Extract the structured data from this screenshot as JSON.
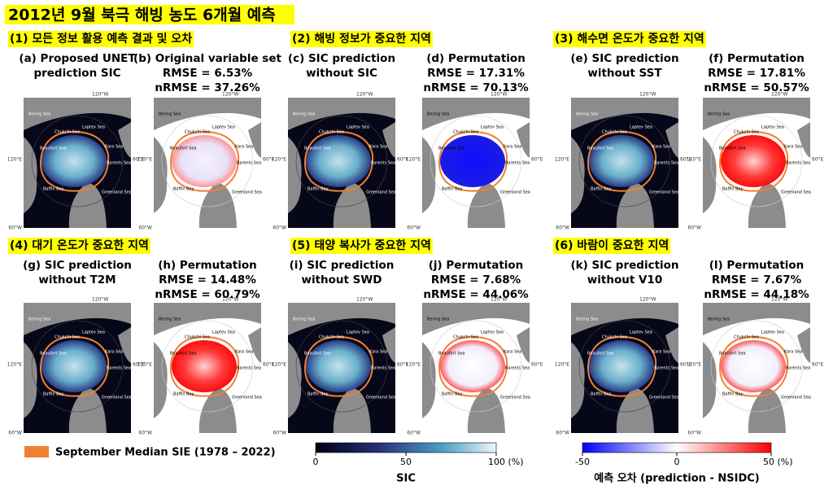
{
  "title": "2012년 9월 북극 해빙 농도 6개월 예측",
  "sections": [
    {
      "heading": "(1) 모든 정보 활용 예측 결과 및 오차",
      "panels": [
        {
          "caption": [
            "(a) Proposed UNET",
            "prediction SIC"
          ]
        },
        {
          "caption": [
            "(b) Original variable set",
            "RMSE = 6.53%",
            "nRMSE = 37.26%"
          ]
        }
      ]
    },
    {
      "heading": "(2) 해빙 정보가 중요한 지역",
      "panels": [
        {
          "caption": [
            "(c) SIC prediction",
            "without SIC"
          ]
        },
        {
          "caption": [
            "(d) Permutation",
            "RMSE = 17.31%",
            "nRMSE = 70.13%"
          ]
        }
      ]
    },
    {
      "heading": "(3) 해수면 온도가 중요한 지역",
      "panels": [
        {
          "caption": [
            "(e) SIC prediction",
            "without SST"
          ]
        },
        {
          "caption": [
            "(f) Permutation",
            "RMSE = 17.81%",
            "nRMSE = 50.57%"
          ]
        }
      ]
    },
    {
      "heading": "(4) 대기 온도가 중요한 지역",
      "panels": [
        {
          "caption": [
            "(g) SIC prediction",
            "without T2M"
          ]
        },
        {
          "caption": [
            "(h) Permutation",
            "RMSE = 14.48%",
            "nRMSE = 60.79%"
          ]
        }
      ]
    },
    {
      "heading": "(5) 태양 복사가 중요한 지역",
      "panels": [
        {
          "caption": [
            "(i) SIC prediction",
            "without SWD"
          ]
        },
        {
          "caption": [
            "(j) Permutation",
            "RMSE = 7.68%",
            "nRMSE = 44.06%"
          ]
        }
      ]
    },
    {
      "heading": "(6) 바람이 중요한 지역",
      "panels": [
        {
          "caption": [
            "(k) SIC prediction",
            "without V10"
          ]
        },
        {
          "caption": [
            "(l) Permutation",
            "RMSE = 7.67%",
            "nRMSE = 44.18%"
          ]
        }
      ]
    }
  ],
  "map_labels": {
    "seas": [
      "Bering Sea",
      "Chukchi Sea",
      "Laptev Sea",
      "Beaufort Sea",
      "Kara Sea",
      "Barents Sea",
      "Baffin Bay",
      "Greenland Sea"
    ],
    "longitudes": [
      "120°W",
      "120°E",
      "60°W",
      "60°E"
    ]
  },
  "legend": {
    "label": "September Median SIE (1978 – 2022)"
  },
  "colorbars": [
    {
      "title": "SIC",
      "range": [
        0,
        100
      ],
      "ticks": [
        0,
        50,
        {
          "value": 100,
          "label": "100 (%)"
        }
      ]
    },
    {
      "title": "예측 오차 (prediction - NSIDC)",
      "range": [
        -50,
        50
      ],
      "ticks": [
        -50,
        0,
        {
          "value": 50,
          "label": "50 (%)"
        }
      ]
    }
  ]
}
